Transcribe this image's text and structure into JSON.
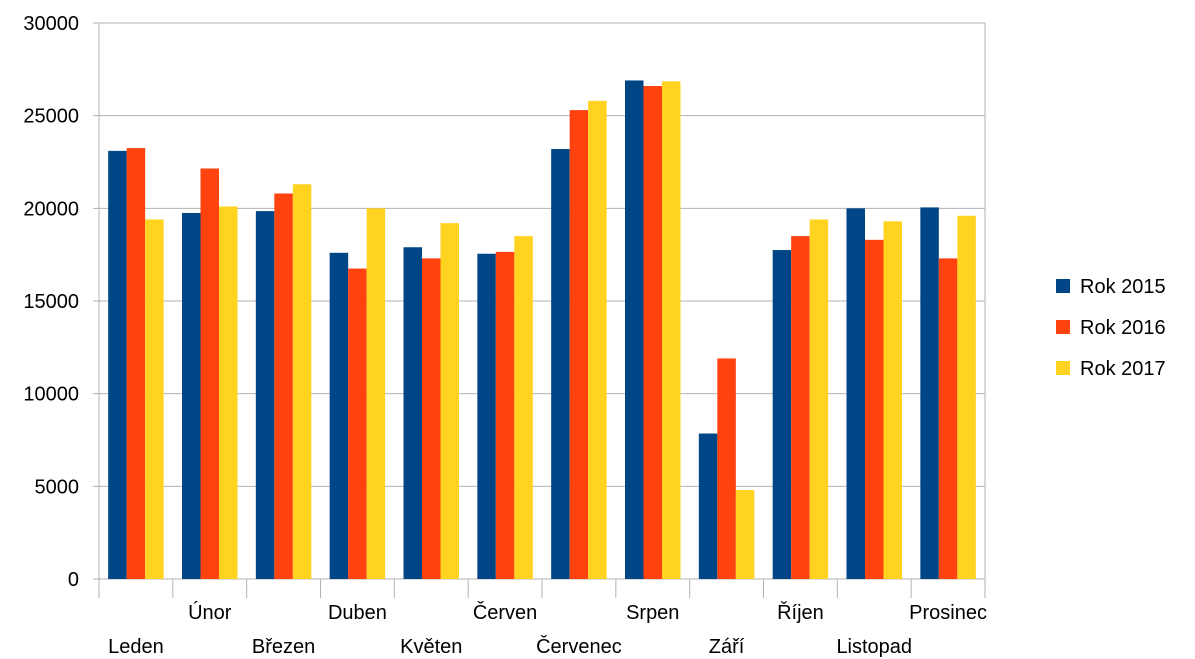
{
  "chart_data": {
    "type": "bar",
    "categories": [
      "Leden",
      "Únor",
      "Březen",
      "Duben",
      "Květen",
      "Červen",
      "Červenec",
      "Srpen",
      "Září",
      "Říjen",
      "Listopad",
      "Prosinec"
    ],
    "series": [
      {
        "name": "Rok 2015",
        "color": "#004586",
        "values": [
          23100,
          19750,
          19850,
          17600,
          17900,
          17550,
          23200,
          26900,
          7850,
          17750,
          20000,
          20050
        ]
      },
      {
        "name": "Rok 2016",
        "color": "#ff420e",
        "values": [
          23250,
          22150,
          20800,
          16750,
          17300,
          17650,
          25300,
          26600,
          11900,
          18500,
          18300,
          17300
        ]
      },
      {
        "name": "Rok 2017",
        "color": "#ffd320",
        "values": [
          19400,
          20100,
          21300,
          20000,
          19200,
          18500,
          25800,
          26850,
          4800,
          19400,
          19300,
          19600
        ]
      }
    ],
    "yticks": [
      "0",
      "5000",
      "10000",
      "15000",
      "20000",
      "25000",
      "30000"
    ],
    "ylim": [
      0,
      30000
    ],
    "title": "",
    "xlabel": "",
    "ylabel": "",
    "grid": "horizontal",
    "legend_position": "right"
  }
}
